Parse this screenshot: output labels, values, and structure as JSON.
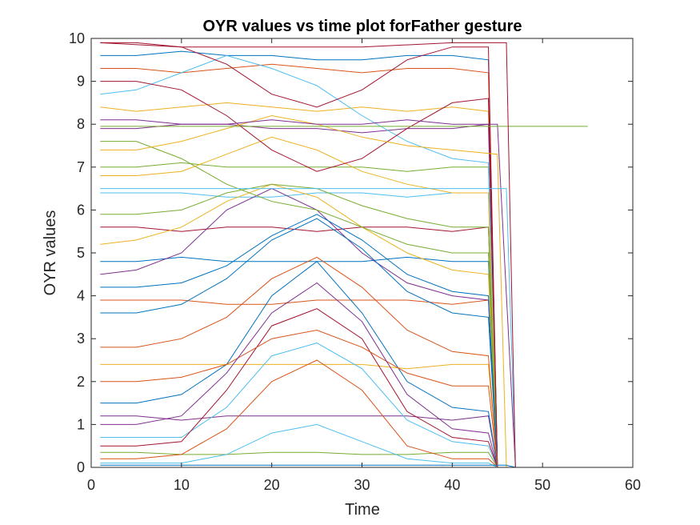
{
  "chart_data": {
    "type": "line",
    "title": "OYR values vs time plot forFather gesture",
    "xlabel": "Time",
    "ylabel": "OYR values",
    "xlim": [
      0,
      60
    ],
    "ylim": [
      0,
      10
    ],
    "xticks": [
      "0",
      "10",
      "20",
      "30",
      "40",
      "50",
      "60"
    ],
    "yticks": [
      "0",
      "1",
      "2",
      "3",
      "4",
      "5",
      "6",
      "7",
      "8",
      "9",
      "10"
    ],
    "grid": false,
    "legend": "none",
    "colors": [
      "#0072BD",
      "#D95319",
      "#EDB120",
      "#7E2F8E",
      "#77AC30",
      "#4DBEEE",
      "#A2142F"
    ],
    "series": [
      {
        "x": [
          1,
          5,
          10,
          15,
          20,
          25,
          30,
          35,
          40,
          44,
          45,
          47
        ],
        "values": [
          9.6,
          9.6,
          9.7,
          9.6,
          9.6,
          9.5,
          9.5,
          9.6,
          9.6,
          9.5,
          0.0,
          0.0
        ]
      },
      {
        "x": [
          1,
          5,
          10,
          15,
          20,
          25,
          30,
          35,
          40,
          44,
          45,
          47
        ],
        "values": [
          9.3,
          9.3,
          9.2,
          9.3,
          9.4,
          9.3,
          9.2,
          9.3,
          9.3,
          9.2,
          0.0,
          0.0
        ]
      },
      {
        "x": [
          1,
          5,
          10,
          15,
          20,
          25,
          30,
          35,
          40,
          44,
          45,
          47
        ],
        "values": [
          8.4,
          8.3,
          8.4,
          8.5,
          8.4,
          8.3,
          8.4,
          8.3,
          8.4,
          8.3,
          0.0,
          0.0
        ]
      },
      {
        "x": [
          1,
          5,
          10,
          15,
          20,
          25,
          30,
          35,
          40,
          44,
          45,
          47
        ],
        "values": [
          7.9,
          7.9,
          8.0,
          8.0,
          7.9,
          7.9,
          7.8,
          7.9,
          7.9,
          8.0,
          0.0,
          0.0
        ]
      },
      {
        "x": [
          1,
          5,
          10,
          15,
          20,
          25,
          30,
          35,
          40,
          44,
          45,
          47
        ],
        "values": [
          7.0,
          7.0,
          7.1,
          7.0,
          7.0,
          7.0,
          7.0,
          6.9,
          7.0,
          7.0,
          0.0,
          0.0
        ]
      },
      {
        "x": [
          1,
          5,
          10,
          15,
          20,
          25,
          30,
          35,
          40,
          44,
          45,
          47
        ],
        "values": [
          6.4,
          6.4,
          6.4,
          6.3,
          6.3,
          6.4,
          6.4,
          6.3,
          6.4,
          6.4,
          0.0,
          0.0
        ]
      },
      {
        "x": [
          1,
          5,
          10,
          15,
          20,
          25,
          30,
          35,
          40,
          44,
          45,
          47
        ],
        "values": [
          5.6,
          5.6,
          5.5,
          5.6,
          5.6,
          5.5,
          5.6,
          5.6,
          5.5,
          5.6,
          0.0,
          0.0
        ]
      },
      {
        "x": [
          1,
          5,
          10,
          15,
          20,
          25,
          30,
          35,
          40,
          44,
          45,
          47
        ],
        "values": [
          4.8,
          4.8,
          4.9,
          4.8,
          4.8,
          4.8,
          4.8,
          4.9,
          4.8,
          4.8,
          0.0,
          0.0
        ]
      },
      {
        "x": [
          1,
          5,
          10,
          15,
          20,
          25,
          30,
          35,
          40,
          44,
          45,
          47
        ],
        "values": [
          3.9,
          3.9,
          3.9,
          3.8,
          3.8,
          3.9,
          3.9,
          3.9,
          3.8,
          3.9,
          0.0,
          0.0
        ]
      },
      {
        "x": [
          1,
          5,
          10,
          15,
          20,
          25,
          30,
          35,
          40,
          44,
          45,
          47
        ],
        "values": [
          2.4,
          2.4,
          2.4,
          2.4,
          2.4,
          2.4,
          2.4,
          2.3,
          2.4,
          2.4,
          0.0,
          0.0
        ]
      },
      {
        "x": [
          1,
          5,
          10,
          15,
          20,
          25,
          30,
          35,
          40,
          44,
          45,
          47
        ],
        "values": [
          1.2,
          1.2,
          1.1,
          1.2,
          1.2,
          1.2,
          1.2,
          1.2,
          1.1,
          1.2,
          0.0,
          0.0
        ]
      },
      {
        "x": [
          1,
          5,
          10,
          15,
          20,
          25,
          30,
          35,
          40,
          44,
          45,
          47
        ],
        "values": [
          0.35,
          0.35,
          0.3,
          0.3,
          0.35,
          0.35,
          0.3,
          0.3,
          0.35,
          0.35,
          0.0,
          0.0
        ]
      },
      {
        "x": [
          1,
          5,
          10,
          15,
          20,
          25,
          30,
          35,
          40,
          44,
          45,
          47
        ],
        "values": [
          0.7,
          0.7,
          0.7,
          1.4,
          2.6,
          2.9,
          2.3,
          1.1,
          0.6,
          0.5,
          0.0,
          0.0
        ]
      },
      {
        "x": [
          1,
          5,
          10,
          15,
          20,
          25,
          30,
          35,
          40,
          44,
          45,
          47
        ],
        "values": [
          0.5,
          0.5,
          0.6,
          1.8,
          3.3,
          3.7,
          3.0,
          1.3,
          0.7,
          0.6,
          0.0,
          0.0
        ]
      },
      {
        "x": [
          1,
          5,
          10,
          15,
          20,
          25,
          30,
          35,
          40,
          44,
          45,
          47
        ],
        "values": [
          1.5,
          1.5,
          1.7,
          2.4,
          4.0,
          4.8,
          3.6,
          2.0,
          1.4,
          1.3,
          0.0,
          0.0
        ]
      },
      {
        "x": [
          1,
          5,
          10,
          15,
          20,
          25,
          30,
          35,
          40,
          44,
          45,
          47
        ],
        "values": [
          0.2,
          0.2,
          0.3,
          0.9,
          2.0,
          2.5,
          1.8,
          0.5,
          0.2,
          0.2,
          0.0,
          0.0
        ]
      },
      {
        "x": [
          1,
          5,
          10,
          15,
          20,
          25,
          30,
          35,
          40,
          44,
          45,
          47
        ],
        "values": [
          5.2,
          5.3,
          5.6,
          6.2,
          6.6,
          6.3,
          5.6,
          5.0,
          4.6,
          4.5,
          0.0,
          0.0
        ]
      },
      {
        "x": [
          1,
          5,
          10,
          15,
          20,
          25,
          30,
          35,
          40,
          44,
          45,
          47
        ],
        "values": [
          4.5,
          4.6,
          5.0,
          6.0,
          6.5,
          6.0,
          5.0,
          4.3,
          4.0,
          3.9,
          0.0,
          0.0
        ]
      },
      {
        "x": [
          1,
          5,
          10,
          15,
          20,
          25,
          30,
          35,
          40,
          44,
          45,
          47
        ],
        "values": [
          7.6,
          7.6,
          7.2,
          6.6,
          6.2,
          6.0,
          5.6,
          5.2,
          5.0,
          5.0,
          0.0,
          0.0
        ]
      },
      {
        "x": [
          1,
          5,
          10,
          15,
          20,
          25,
          30,
          35,
          40,
          44,
          45,
          47
        ],
        "values": [
          8.7,
          8.8,
          9.2,
          9.6,
          9.3,
          8.9,
          8.2,
          7.6,
          7.2,
          7.1,
          0.0,
          0.0
        ]
      },
      {
        "x": [
          1,
          5,
          10,
          15,
          20,
          25,
          30,
          35,
          40,
          44,
          45,
          47
        ],
        "values": [
          9.9,
          9.9,
          9.8,
          9.4,
          8.7,
          8.4,
          8.8,
          9.5,
          9.8,
          9.8,
          0.0,
          0.0
        ]
      },
      {
        "x": [
          1,
          5,
          10,
          15,
          20,
          25,
          30,
          35,
          40,
          44,
          45,
          47
        ],
        "values": [
          3.6,
          3.6,
          3.8,
          4.4,
          5.3,
          5.8,
          5.1,
          4.1,
          3.6,
          3.5,
          0.0,
          0.0
        ]
      },
      {
        "x": [
          1,
          5,
          10,
          15,
          20,
          25,
          30,
          35,
          40,
          44,
          45,
          47
        ],
        "values": [
          2.0,
          2.0,
          2.1,
          2.4,
          3.0,
          3.2,
          2.8,
          2.2,
          1.9,
          1.9,
          0.0,
          0.0
        ]
      },
      {
        "x": [
          1,
          5,
          10,
          15,
          20,
          25,
          30,
          35,
          40,
          44,
          45,
          47
        ],
        "values": [
          6.8,
          6.8,
          6.9,
          7.3,
          7.7,
          7.4,
          6.9,
          6.6,
          6.4,
          6.4,
          0.0,
          0.0
        ]
      },
      {
        "x": [
          1,
          5,
          10,
          15,
          20,
          25,
          30,
          35,
          40,
          44,
          45,
          47
        ],
        "values": [
          1.0,
          1.0,
          1.2,
          2.2,
          3.6,
          4.3,
          3.4,
          1.7,
          0.9,
          0.8,
          0.0,
          0.0
        ]
      },
      {
        "x": [
          1,
          5,
          10,
          15,
          20,
          25,
          30,
          35,
          40,
          44,
          45,
          47
        ],
        "values": [
          5.9,
          5.9,
          6.0,
          6.4,
          6.6,
          6.5,
          6.1,
          5.8,
          5.6,
          5.6,
          0.0,
          0.0
        ]
      },
      {
        "x": [
          1,
          5,
          10,
          15,
          20,
          25,
          30,
          35,
          40,
          44,
          45,
          47
        ],
        "values": [
          0.1,
          0.1,
          0.1,
          0.3,
          0.8,
          1.0,
          0.6,
          0.2,
          0.1,
          0.1,
          0.0,
          0.0
        ]
      },
      {
        "x": [
          1,
          5,
          10,
          15,
          20,
          25,
          30,
          35,
          40,
          44,
          45,
          47
        ],
        "values": [
          9.0,
          9.0,
          8.8,
          8.2,
          7.4,
          6.9,
          7.2,
          7.9,
          8.5,
          8.6,
          0.0,
          0.0
        ]
      },
      {
        "x": [
          1,
          5,
          10,
          15,
          20,
          25,
          30,
          35,
          40,
          44,
          45,
          47
        ],
        "values": [
          4.2,
          4.2,
          4.3,
          4.7,
          5.4,
          5.9,
          5.3,
          4.5,
          4.1,
          4.0,
          0.0,
          0.0
        ]
      },
      {
        "x": [
          1,
          5,
          10,
          15,
          20,
          25,
          30,
          35,
          40,
          44,
          45,
          47
        ],
        "values": [
          2.8,
          2.8,
          3.0,
          3.5,
          4.4,
          4.9,
          4.2,
          3.2,
          2.7,
          2.6,
          0.0,
          0.0
        ]
      },
      {
        "x": [
          1,
          5,
          10,
          15,
          20,
          25,
          30,
          35,
          40,
          45,
          46
        ],
        "values": [
          7.4,
          7.4,
          7.6,
          7.9,
          8.2,
          8.0,
          7.7,
          7.5,
          7.4,
          7.3,
          0.0
        ]
      },
      {
        "x": [
          1,
          5,
          10,
          15,
          20,
          25,
          30,
          35,
          40,
          45,
          47
        ],
        "values": [
          8.1,
          8.1,
          8.0,
          8.0,
          8.1,
          8.0,
          8.0,
          8.1,
          8.0,
          8.0,
          0.0
        ]
      },
      {
        "x": [
          1,
          10,
          20,
          30,
          40,
          44,
          46,
          55
        ],
        "values": [
          7.95,
          7.95,
          7.95,
          7.95,
          7.95,
          7.95,
          7.95,
          7.95
        ]
      },
      {
        "x": [
          1,
          10,
          20,
          30,
          40,
          46,
          47
        ],
        "values": [
          6.5,
          6.5,
          6.5,
          6.5,
          6.5,
          6.5,
          0.0
        ]
      },
      {
        "x": [
          1,
          10,
          20,
          30,
          40,
          46,
          47
        ],
        "values": [
          9.9,
          9.8,
          9.8,
          9.8,
          9.9,
          9.9,
          0.0
        ]
      },
      {
        "x": [
          1,
          10,
          20,
          30,
          40,
          46,
          47,
          55
        ],
        "values": [
          0.05,
          0.05,
          0.05,
          0.05,
          0.05,
          0.05,
          0.0,
          0.0
        ]
      }
    ]
  }
}
